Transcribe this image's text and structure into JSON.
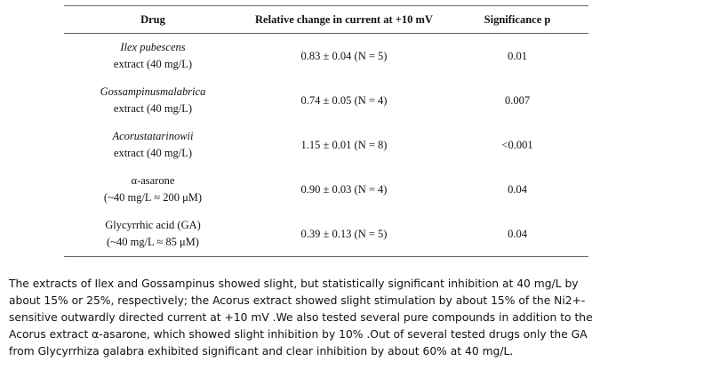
{
  "table": {
    "header": [
      "Drug",
      "Relative change in current at +10 mV",
      "Significance p"
    ],
    "rows": [
      [
        [
          "Ilex pubescens",
          "extract (40 mg/L)"
        ],
        "0.83 ± 0.04 (N = 5)",
        "0.01"
      ],
      [
        [
          "Gossampinusmalabrica",
          "extract (40 mg/L)"
        ],
        "0.74 ± 0.05 (N = 4)",
        "0.007"
      ],
      [
        [
          "Acorustatarinowii",
          "extract (40 mg/L)"
        ],
        "1.15 ± 0.01 (N = 8)",
        "<0.001"
      ],
      [
        [
          "α-asarone",
          "(~40 mg/L ≈ 200 μM)"
        ],
        "0.90 ± 0.03 (N = 4)",
        "0.04"
      ],
      [
        [
          "Glycyrrhic acid (GA)",
          "(~40 mg/L ≈ 85 μM)"
        ],
        "0.39 ± 0.13 (N = 5)",
        "0.04"
      ]
    ]
  },
  "paragraph": [
    "The extracts of Ilex and Gossampinus showed slight, but statistically significant inhibition at 40 mg/L by",
    "about 15% or 25%, respectively; the Acorus extract showed slight stimulation by about 15% of the Ni2+-",
    "sensitive outwardly directed current at +10 mV .We also tested several pure compounds in addition to the",
    "Acorus extract α-asarone, which showed slight inhibition by 10% .Out of several tested drugs only the GA",
    "from Glycyrrhiza galabra exhibited significant and clear inhibition by about 60% at 40 mg/L."
  ]
}
